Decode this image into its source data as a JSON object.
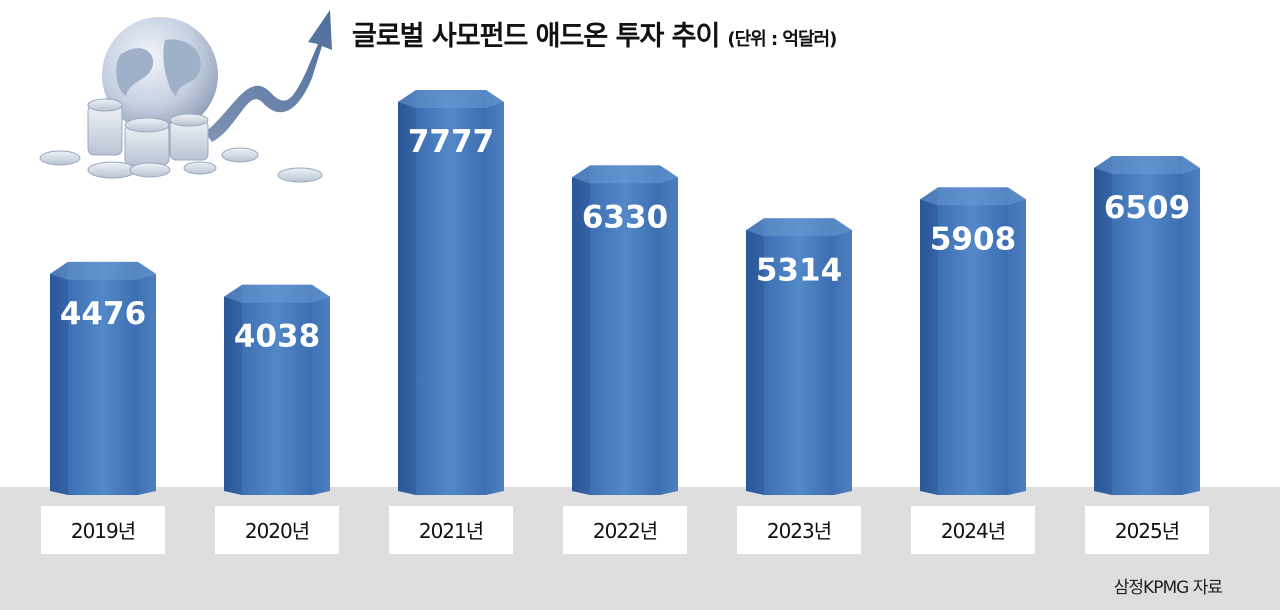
{
  "chart_data": {
    "type": "bar",
    "title": "글로벌 사모펀드 애드온 투자 추이",
    "unit": "(단위 : 억달러)",
    "categories": [
      "2019년",
      "2020년",
      "2021년",
      "2022년",
      "2023년",
      "2024년",
      "2025년"
    ],
    "values": [
      4476,
      4038,
      7777,
      6330,
      5314,
      5908,
      6509
    ],
    "value_labels": [
      "4476",
      "4038",
      "7777",
      "6330",
      "5314",
      "5908",
      "6509"
    ],
    "source": "삼정KPMG 자료",
    "colors": {
      "bar_front": "#4a7fc0",
      "bar_left": "#2f5f9e",
      "bar_right": "#5b8fcc",
      "bar_top": "#6d9ed6",
      "floor": "#dcdcdc",
      "category_box": "#ffffff"
    },
    "icon": "globe-coins-growth-arrow-icon"
  }
}
